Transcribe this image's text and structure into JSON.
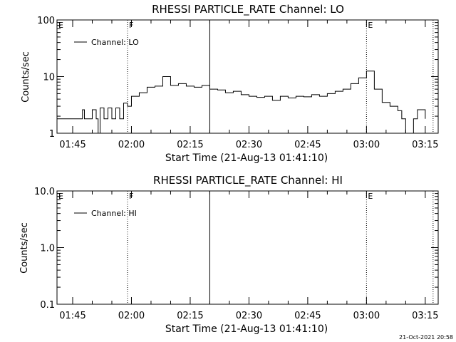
{
  "chart_data": [
    {
      "type": "line",
      "title": "RHESSI PARTICLE_RATE Channel: LO",
      "xlabel": "Start Time (21-Aug-13 01:41:10)",
      "ylabel": "Counts/sec",
      "yscale": "log",
      "ylim": [
        1,
        100
      ],
      "y_tick_labels": [
        "1",
        "10",
        "100"
      ],
      "xlim_minutes_from_0141": [
        0,
        97.3
      ],
      "x_tick_labels": [
        "01:45",
        "02:00",
        "02:15",
        "02:30",
        "02:45",
        "03:00",
        "03:15"
      ],
      "legend": {
        "position": "top-left",
        "entries": [
          "Channel: LO"
        ]
      },
      "markers": [
        {
          "label": "E",
          "time": "01:41",
          "style": "none"
        },
        {
          "label": "F",
          "time": "01:59",
          "style": "dotted"
        },
        {
          "label": "",
          "time": "02:20",
          "style": "solid"
        },
        {
          "label": "E",
          "time": "03:00",
          "style": "dotted"
        },
        {
          "label": "",
          "time": "03:17",
          "style": "dotted"
        }
      ],
      "series": [
        {
          "name": "Channel: LO",
          "x": [
            "01:41",
            "01:45",
            "01:47",
            "01:47.5",
            "01:48",
            "01:50",
            "01:51",
            "01:51.5",
            "01:52",
            "01:53",
            "01:54",
            "01:55",
            "01:56",
            "01:57",
            "01:58",
            "01:59",
            "02:00",
            "02:02",
            "02:04",
            "02:06",
            "02:08",
            "02:10",
            "02:12",
            "02:14",
            "02:16",
            "02:18",
            "02:20",
            "02:22",
            "02:24",
            "02:26",
            "02:28",
            "02:30",
            "02:32",
            "02:34",
            "02:36",
            "02:38",
            "02:40",
            "02:42",
            "02:44",
            "02:46",
            "02:48",
            "02:50",
            "02:52",
            "02:54",
            "02:56",
            "02:58",
            "03:00",
            "03:02",
            "03:04",
            "03:06",
            "03:08",
            "03:09",
            "03:10",
            "03:12",
            "03:13",
            "03:15"
          ],
          "values": [
            1.8,
            1.8,
            1.8,
            2.6,
            1.8,
            2.6,
            1.8,
            1.0,
            2.8,
            1.8,
            2.8,
            1.8,
            2.8,
            1.8,
            3.4,
            3.0,
            4.5,
            5.2,
            6.5,
            6.8,
            10.0,
            7.0,
            7.5,
            6.8,
            6.5,
            7.0,
            6.0,
            5.8,
            5.2,
            5.5,
            4.8,
            4.5,
            4.3,
            4.5,
            3.8,
            4.5,
            4.2,
            4.5,
            4.4,
            4.8,
            4.5,
            5.0,
            5.5,
            6.0,
            7.5,
            9.5,
            12.5,
            6.0,
            3.5,
            3.0,
            2.5,
            1.8,
            0.9,
            1.8,
            2.6,
            1.8
          ]
        }
      ]
    },
    {
      "type": "line",
      "title": "RHESSI PARTICLE_RATE Channel: HI",
      "xlabel": "Start Time (21-Aug-13 01:41:10)",
      "ylabel": "Counts/sec",
      "yscale": "log",
      "ylim": [
        0.1,
        10.0
      ],
      "y_tick_labels": [
        "0.1",
        "1.0",
        "10.0"
      ],
      "xlim_minutes_from_0141": [
        0,
        97.3
      ],
      "x_tick_labels": [
        "01:45",
        "02:00",
        "02:15",
        "02:30",
        "02:45",
        "03:00",
        "03:15"
      ],
      "legend": {
        "position": "top-left",
        "entries": [
          "Channel: HI"
        ]
      },
      "markers": [
        {
          "label": "E",
          "time": "01:41",
          "style": "none"
        },
        {
          "label": "F",
          "time": "01:59",
          "style": "dotted"
        },
        {
          "label": "",
          "time": "02:20",
          "style": "solid"
        },
        {
          "label": "E",
          "time": "03:00",
          "style": "dotted"
        },
        {
          "label": "",
          "time": "03:17",
          "style": "dotted"
        }
      ],
      "series": [
        {
          "name": "Channel: HI",
          "x": [],
          "values": []
        }
      ]
    }
  ],
  "footer": {
    "timestamp": "21-Oct-2021 20:58"
  }
}
